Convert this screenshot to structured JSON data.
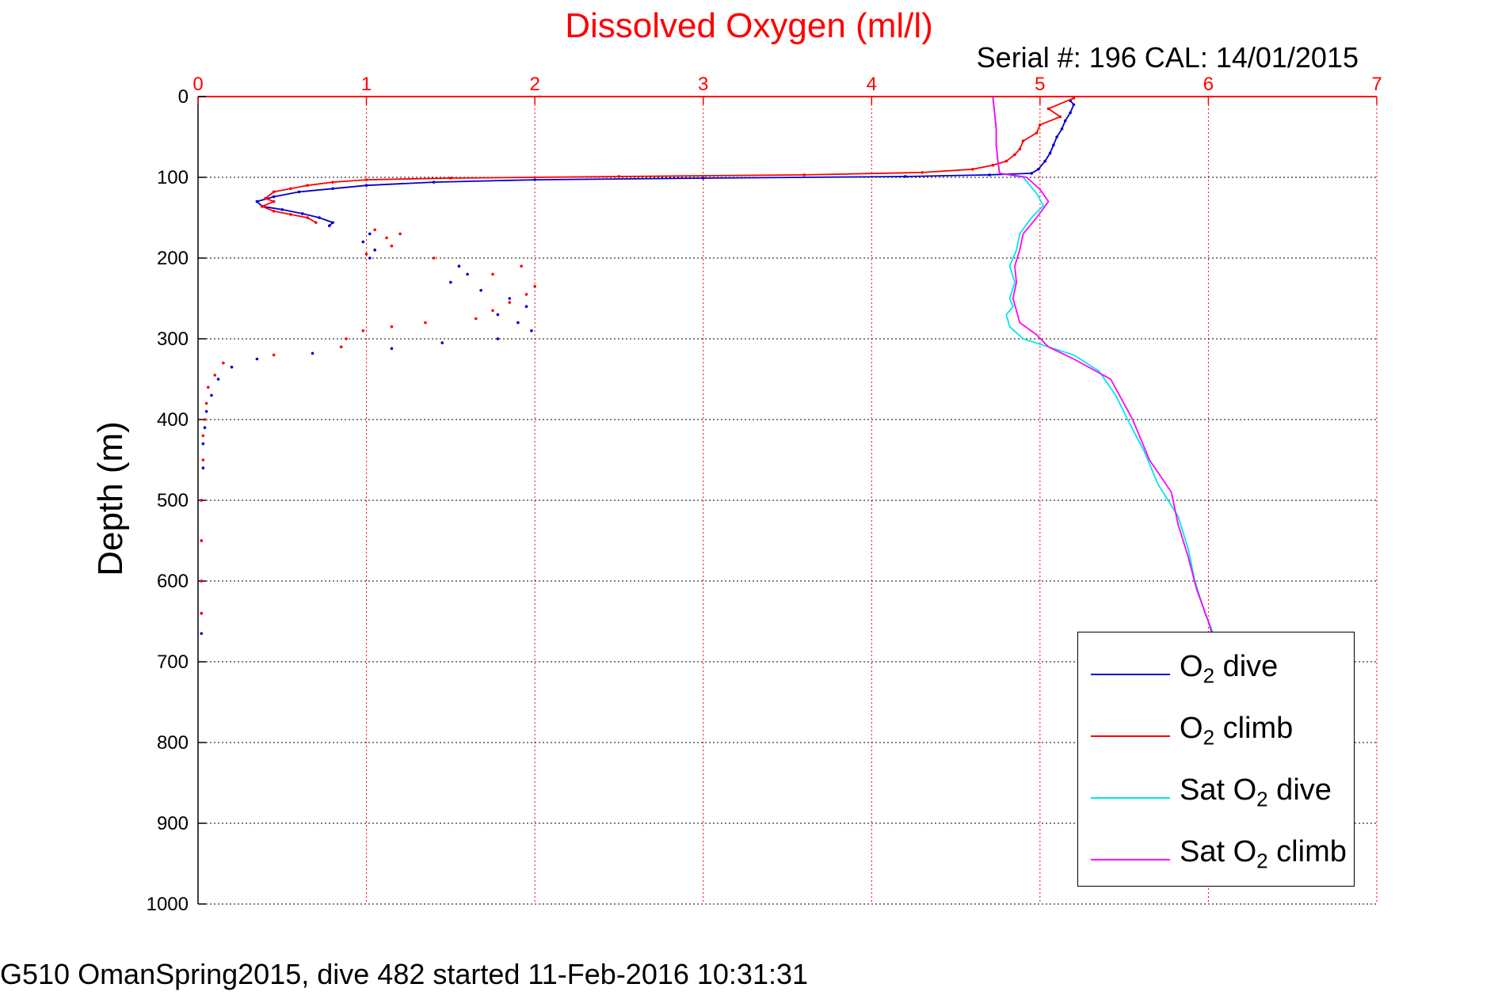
{
  "chart_data": {
    "type": "line",
    "title": "Dissolved Oxygen (ml/l)",
    "annotation": "Serial #: 196  CAL: 14/01/2015",
    "caption": "G510 OmanSpring2015, dive 482 started 11-Feb-2016 10:31:31",
    "xlabel": "",
    "ylabel": "Depth (m)",
    "xlim": [
      0,
      7
    ],
    "ylim": [
      0,
      1000
    ],
    "y_reversed": true,
    "x_axis_position": "top",
    "x_ticks": [
      0,
      1,
      2,
      3,
      4,
      5,
      6,
      7
    ],
    "y_ticks": [
      0,
      100,
      200,
      300,
      400,
      500,
      600,
      700,
      800,
      900,
      1000
    ],
    "grid": true,
    "legend_position": "bottom-right",
    "colors": {
      "title": "#ff0000",
      "x_axis": "#ff0000",
      "grid": "#000000"
    },
    "series": [
      {
        "name": "O2 dive",
        "color": "#0000cc",
        "style": "line+dots",
        "points": [
          [
            5.18,
            5
          ],
          [
            5.2,
            10
          ],
          [
            5.18,
            20
          ],
          [
            5.15,
            30
          ],
          [
            5.13,
            40
          ],
          [
            5.1,
            50
          ],
          [
            5.08,
            60
          ],
          [
            5.06,
            70
          ],
          [
            5.03,
            80
          ],
          [
            4.99,
            90
          ],
          [
            4.95,
            95
          ],
          [
            4.7,
            97
          ],
          [
            4.2,
            99
          ],
          [
            3.0,
            101
          ],
          [
            2.0,
            103
          ],
          [
            1.4,
            106
          ],
          [
            1.0,
            110
          ],
          [
            0.8,
            114
          ],
          [
            0.6,
            118
          ],
          [
            0.45,
            124
          ],
          [
            0.35,
            130
          ],
          [
            0.38,
            136
          ],
          [
            0.5,
            140
          ],
          [
            0.62,
            145
          ],
          [
            0.72,
            150
          ],
          [
            0.8,
            156
          ],
          [
            0.78,
            160
          ]
        ]
      },
      {
        "name": "O2 dive",
        "color": "#0000cc",
        "style": "dots",
        "points": [
          [
            1.02,
            170
          ],
          [
            0.98,
            180
          ],
          [
            1.05,
            190
          ],
          [
            1.02,
            200
          ],
          [
            1.55,
            210
          ],
          [
            1.6,
            220
          ],
          [
            1.5,
            230
          ],
          [
            1.68,
            240
          ],
          [
            1.85,
            250
          ],
          [
            1.95,
            260
          ],
          [
            1.78,
            270
          ],
          [
            1.9,
            280
          ],
          [
            1.98,
            290
          ],
          [
            1.78,
            300
          ],
          [
            1.45,
            305
          ],
          [
            1.15,
            312
          ],
          [
            0.68,
            318
          ],
          [
            0.35,
            325
          ],
          [
            0.2,
            335
          ],
          [
            0.12,
            350
          ],
          [
            0.08,
            370
          ],
          [
            0.05,
            390
          ],
          [
            0.04,
            410
          ],
          [
            0.03,
            430
          ],
          [
            0.03,
            460
          ],
          [
            0.02,
            500
          ],
          [
            0.02,
            550
          ],
          [
            0.02,
            600
          ],
          [
            0.02,
            640
          ],
          [
            0.02,
            665
          ]
        ]
      },
      {
        "name": "O2 climb",
        "color": "#ff0000",
        "style": "line+dots",
        "points": [
          [
            5.2,
            2
          ],
          [
            5.05,
            15
          ],
          [
            5.12,
            25
          ],
          [
            5.0,
            35
          ],
          [
            4.98,
            45
          ],
          [
            4.9,
            55
          ],
          [
            4.88,
            65
          ],
          [
            4.85,
            72
          ],
          [
            4.8,
            80
          ],
          [
            4.72,
            85
          ],
          [
            4.6,
            90
          ],
          [
            4.3,
            94
          ],
          [
            3.6,
            97
          ],
          [
            2.5,
            99
          ],
          [
            1.5,
            101
          ],
          [
            1.0,
            103
          ],
          [
            0.8,
            106
          ],
          [
            0.65,
            110
          ],
          [
            0.55,
            114
          ],
          [
            0.45,
            118
          ],
          [
            0.4,
            126
          ],
          [
            0.45,
            130
          ],
          [
            0.38,
            136
          ],
          [
            0.45,
            142
          ],
          [
            0.55,
            146
          ],
          [
            0.65,
            150
          ],
          [
            0.7,
            156
          ]
        ]
      },
      {
        "name": "O2 climb",
        "color": "#ff0000",
        "style": "dots",
        "points": [
          [
            1.05,
            165
          ],
          [
            1.2,
            170
          ],
          [
            1.12,
            175
          ],
          [
            1.15,
            185
          ],
          [
            1.0,
            195
          ],
          [
            1.4,
            200
          ],
          [
            1.92,
            210
          ],
          [
            1.75,
            220
          ],
          [
            2.0,
            235
          ],
          [
            1.95,
            245
          ],
          [
            1.85,
            255
          ],
          [
            1.75,
            265
          ],
          [
            1.65,
            275
          ],
          [
            1.35,
            280
          ],
          [
            1.15,
            285
          ],
          [
            0.98,
            290
          ],
          [
            0.88,
            300
          ],
          [
            0.85,
            310
          ],
          [
            0.45,
            320
          ],
          [
            0.15,
            330
          ],
          [
            0.1,
            345
          ],
          [
            0.06,
            360
          ],
          [
            0.05,
            380
          ],
          [
            0.04,
            400
          ],
          [
            0.03,
            420
          ],
          [
            0.03,
            450
          ],
          [
            0.02,
            500
          ],
          [
            0.02,
            550
          ],
          [
            0.02,
            600
          ],
          [
            0.02,
            640
          ]
        ]
      },
      {
        "name": "Sat O2 dive",
        "color": "#00e6e6",
        "style": "line",
        "points": [
          [
            4.72,
            0
          ],
          [
            4.73,
            20
          ],
          [
            4.74,
            40
          ],
          [
            4.74,
            60
          ],
          [
            4.75,
            80
          ],
          [
            4.76,
            95
          ],
          [
            4.9,
            100
          ],
          [
            4.98,
            120
          ],
          [
            5.02,
            135
          ],
          [
            4.95,
            150
          ],
          [
            4.88,
            170
          ],
          [
            4.86,
            190
          ],
          [
            4.82,
            210
          ],
          [
            4.85,
            230
          ],
          [
            4.82,
            250
          ],
          [
            4.84,
            260
          ],
          [
            4.8,
            270
          ],
          [
            4.82,
            285
          ],
          [
            4.9,
            300
          ],
          [
            5.05,
            310
          ],
          [
            5.2,
            320
          ],
          [
            5.35,
            340
          ],
          [
            5.45,
            370
          ],
          [
            5.52,
            400
          ],
          [
            5.62,
            440
          ],
          [
            5.7,
            480
          ],
          [
            5.82,
            520
          ],
          [
            5.88,
            560
          ],
          [
            5.92,
            600
          ],
          [
            5.98,
            640
          ],
          [
            6.03,
            665
          ]
        ]
      },
      {
        "name": "Sat O2 climb",
        "color": "#ff00ff",
        "style": "line",
        "points": [
          [
            4.72,
            0
          ],
          [
            4.73,
            20
          ],
          [
            4.74,
            40
          ],
          [
            4.74,
            60
          ],
          [
            4.75,
            80
          ],
          [
            4.76,
            95
          ],
          [
            4.92,
            100
          ],
          [
            5.0,
            115
          ],
          [
            5.05,
            130
          ],
          [
            4.98,
            150
          ],
          [
            4.9,
            170
          ],
          [
            4.88,
            190
          ],
          [
            4.85,
            210
          ],
          [
            4.86,
            230
          ],
          [
            4.84,
            250
          ],
          [
            4.86,
            265
          ],
          [
            4.88,
            280
          ],
          [
            4.98,
            295
          ],
          [
            5.05,
            310
          ],
          [
            5.2,
            325
          ],
          [
            5.42,
            350
          ],
          [
            5.55,
            400
          ],
          [
            5.65,
            450
          ],
          [
            5.78,
            490
          ],
          [
            5.82,
            530
          ],
          [
            5.88,
            570
          ],
          [
            5.93,
            610
          ],
          [
            6.0,
            650
          ],
          [
            6.02,
            665
          ]
        ]
      }
    ]
  },
  "legend": [
    {
      "label": "O",
      "sub": "2",
      "suffix": " dive",
      "color": "#0000cc"
    },
    {
      "label": "O",
      "sub": "2",
      "suffix": " climb",
      "color": "#ff0000"
    },
    {
      "label": "Sat O",
      "sub": "2",
      "suffix": " dive",
      "color": "#00e6e6"
    },
    {
      "label": "Sat O",
      "sub": "2",
      "suffix": " climb",
      "color": "#ff00ff"
    }
  ]
}
